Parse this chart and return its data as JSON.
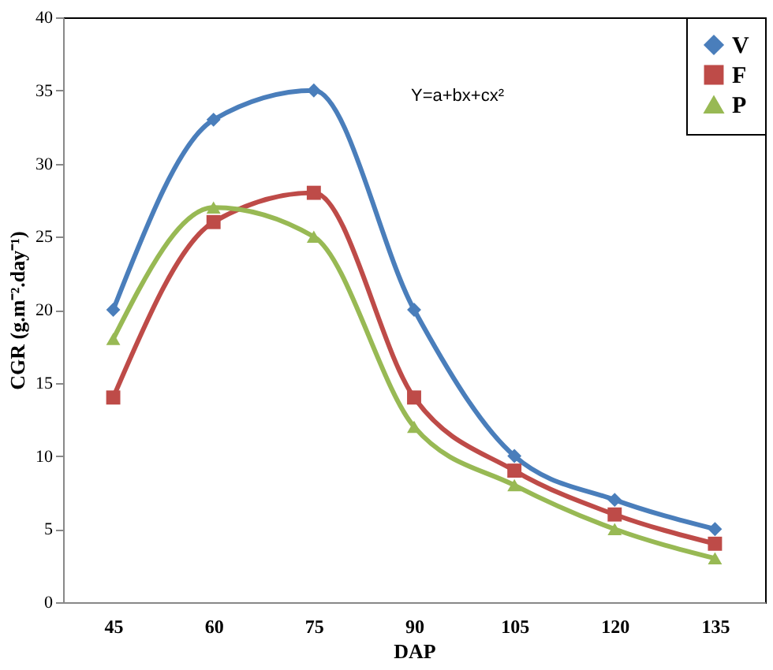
{
  "chart_data": {
    "type": "line",
    "xlabel": "DAP",
    "ylabel": "CGR (g.m⁻².day⁻¹)",
    "categories": [
      "45",
      "60",
      "75",
      "90",
      "105",
      "120",
      "135"
    ],
    "series": [
      {
        "name": "V",
        "color": "#4a7ebb",
        "marker": "diamond",
        "values": [
          20,
          33,
          35,
          20,
          10,
          7,
          5
        ]
      },
      {
        "name": "F",
        "color": "#be4b48",
        "marker": "square",
        "values": [
          14,
          26,
          28,
          14,
          9,
          6,
          4
        ]
      },
      {
        "name": "P",
        "color": "#98b954",
        "marker": "triangle",
        "values": [
          18,
          27,
          25,
          12,
          8,
          5,
          3
        ]
      }
    ],
    "ylim": [
      0,
      40
    ],
    "yticks": [
      0,
      5,
      10,
      15,
      20,
      25,
      30,
      35,
      40
    ],
    "grid": false,
    "legend": "top right",
    "annotations": [
      "Y=a+bx+cx²"
    ]
  }
}
